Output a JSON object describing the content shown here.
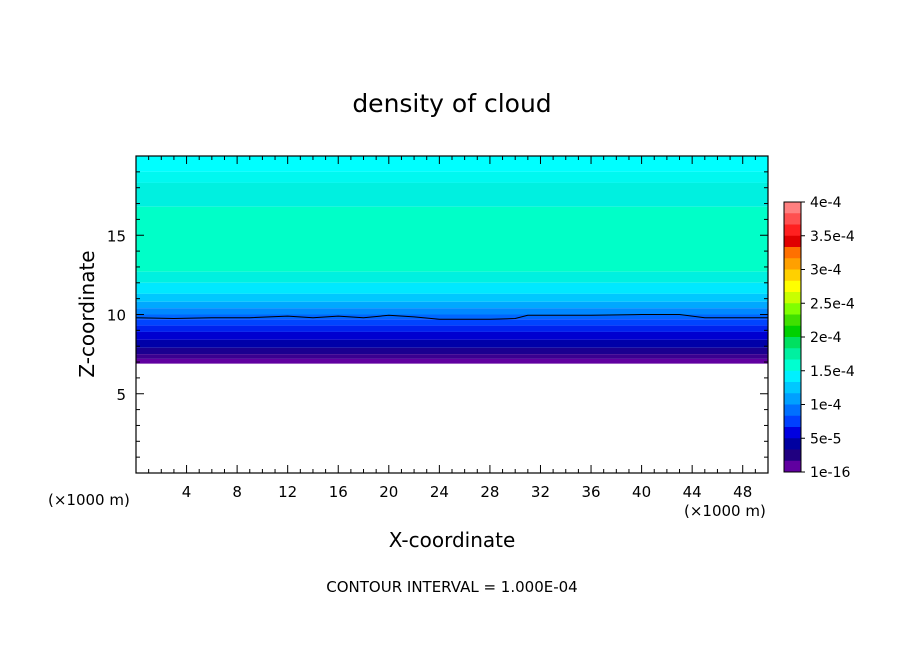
{
  "chart_data": {
    "type": "heatmap",
    "title": "density of cloud",
    "xlabel": "X-coordinate",
    "ylabel": "Z-coordinate",
    "x_unit_left": "(×1000 m)",
    "x_unit_right": "(×1000 m)",
    "xlim": [
      0,
      50
    ],
    "ylim": [
      0,
      20
    ],
    "x_ticks": [
      4,
      8,
      12,
      16,
      20,
      24,
      28,
      32,
      36,
      40,
      44,
      48
    ],
    "y_ticks": [
      5,
      10,
      15
    ],
    "footer": "CONTOUR INTERVAL = 1.000E-04",
    "colorbar": {
      "labels": [
        "4e-4",
        "3.5e-4",
        "3e-4",
        "2.5e-4",
        "2e-4",
        "1.5e-4",
        "1e-4",
        "5e-5",
        "1e-16"
      ],
      "label_values": [
        0.0004,
        0.00035,
        0.0003,
        0.00025,
        0.0002,
        0.00015,
        0.0001,
        5e-05,
        1e-16
      ],
      "colors": [
        "#ff8080",
        "#ff5050",
        "#ff2020",
        "#e00000",
        "#ff7000",
        "#ffa000",
        "#ffd000",
        "#ffff00",
        "#c8ff00",
        "#80ff00",
        "#40e000",
        "#00d000",
        "#00e060",
        "#00f0a0",
        "#00ffd0",
        "#00f0ff",
        "#00c8ff",
        "#00a0ff",
        "#0070ff",
        "#0040ff",
        "#0000e0",
        "#0000a0",
        "#200080",
        "#6000a0"
      ]
    },
    "layers": [
      {
        "z_bottom": 19.0,
        "z_top": 20.0,
        "color": "#00ffff"
      },
      {
        "z_bottom": 18.3,
        "z_top": 19.0,
        "color": "#00f8f0"
      },
      {
        "z_bottom": 16.8,
        "z_top": 18.3,
        "color": "#00f0e0"
      },
      {
        "z_bottom": 12.7,
        "z_top": 16.8,
        "color": "#00ffc8"
      },
      {
        "z_bottom": 12.0,
        "z_top": 12.7,
        "color": "#00f0e0"
      },
      {
        "z_bottom": 11.3,
        "z_top": 12.0,
        "color": "#00e8ff"
      },
      {
        "z_bottom": 10.8,
        "z_top": 11.3,
        "color": "#00c8ff"
      },
      {
        "z_bottom": 10.4,
        "z_top": 10.8,
        "color": "#00a8ff"
      },
      {
        "z_bottom": 10.0,
        "z_top": 10.4,
        "color": "#0088ff"
      },
      {
        "z_bottom": 9.7,
        "z_top": 10.0,
        "color": "#0066ff"
      },
      {
        "z_bottom": 9.3,
        "z_top": 9.7,
        "color": "#0044ff"
      },
      {
        "z_bottom": 8.9,
        "z_top": 9.3,
        "color": "#0022ee"
      },
      {
        "z_bottom": 8.4,
        "z_top": 8.9,
        "color": "#0000d0"
      },
      {
        "z_bottom": 7.9,
        "z_top": 8.4,
        "color": "#0000a8"
      },
      {
        "z_bottom": 7.5,
        "z_top": 7.9,
        "color": "#1a0090"
      },
      {
        "z_bottom": 7.2,
        "z_top": 7.5,
        "color": "#3a0090"
      },
      {
        "z_bottom": 6.9,
        "z_top": 7.2,
        "color": "#6000a0"
      }
    ],
    "contour_line": {
      "color": "#000000",
      "points": [
        [
          0,
          9.8
        ],
        [
          3,
          9.75
        ],
        [
          6,
          9.8
        ],
        [
          9,
          9.8
        ],
        [
          12,
          9.9
        ],
        [
          14,
          9.8
        ],
        [
          16,
          9.9
        ],
        [
          18,
          9.8
        ],
        [
          20,
          9.95
        ],
        [
          22,
          9.85
        ],
        [
          24,
          9.7
        ],
        [
          28,
          9.7
        ],
        [
          30,
          9.75
        ],
        [
          31,
          9.95
        ],
        [
          36,
          9.95
        ],
        [
          40,
          10.0
        ],
        [
          43,
          10.0
        ],
        [
          45,
          9.8
        ],
        [
          50,
          9.8
        ]
      ]
    }
  }
}
